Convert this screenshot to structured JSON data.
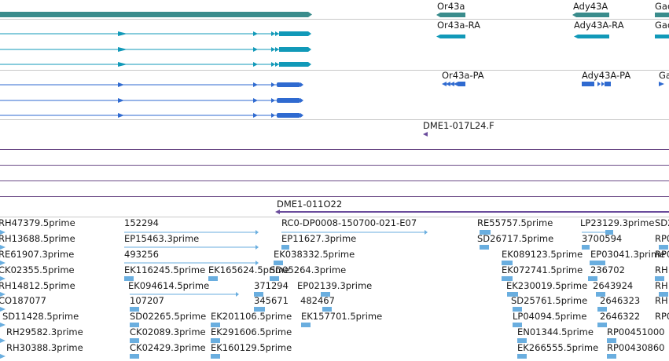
{
  "colors": {
    "gene": "#3a8c8c",
    "transcript": "#1199b8",
    "protein": "#2f6ad0",
    "clone": "#6a4c9c",
    "est": "#6aaedf",
    "divider": "#c8c8c8"
  },
  "gene_track": {
    "labels": [
      "Or43a",
      "Ady43A",
      "Gad"
    ]
  },
  "transcript_track": {
    "labels": [
      "Or43a-RA",
      "Ady43A-RA",
      "Gad"
    ]
  },
  "protein_track": {
    "labels": [
      "Or43a-PA",
      "Ady43A-PA",
      "Ga"
    ]
  },
  "clone_track": {
    "label": "DME1-017L24.F",
    "label2": "DME1-011O22"
  },
  "est_track": {
    "rows": [
      [
        "RH47379.5prime",
        "152294",
        "RC0-DP0008-150700-021-E07",
        "RE55757.5prime",
        "LP23129.3prime",
        "SD2"
      ],
      [
        "RH13688.5prime",
        "EP15463.3prime",
        "EP11627.3prime",
        "SD26717.5prime",
        "3700594",
        "RP0"
      ],
      [
        "RE61907.3prime",
        "493256",
        "EK038332.5prime",
        "EK089123.5prime",
        "EP03041.3prime",
        "RP0"
      ],
      [
        "CK02355.5prime",
        "EK116245.5prime",
        "EK165624.5prime",
        "SD05264.3prime",
        "EK072741.5prime",
        "236702",
        "RH"
      ],
      [
        "RH14812.5prime",
        "EK094614.5prime",
        "371294",
        "EP02139.3prime",
        "EK230019.5prime",
        "2643924",
        "RH"
      ],
      [
        "CO187077",
        "107207",
        "345671",
        "482467",
        "SD25761.5prime",
        "2646323",
        "RH"
      ],
      [
        "SD11428.5prime",
        "SD02265.5prime",
        "EK201106.5prime",
        "EK157701.5prime",
        "LP04094.5prime",
        "2646322",
        "RP0"
      ],
      [
        "RH29582.3prime",
        "CK02089.3prime",
        "EK291606.5prime",
        "EN01344.5prime",
        "RP00451000"
      ],
      [
        "RH30388.3prime",
        "CK02429.3prime",
        "EK160129.5prime",
        "EK266555.5prime",
        "RP00430860"
      ]
    ]
  }
}
